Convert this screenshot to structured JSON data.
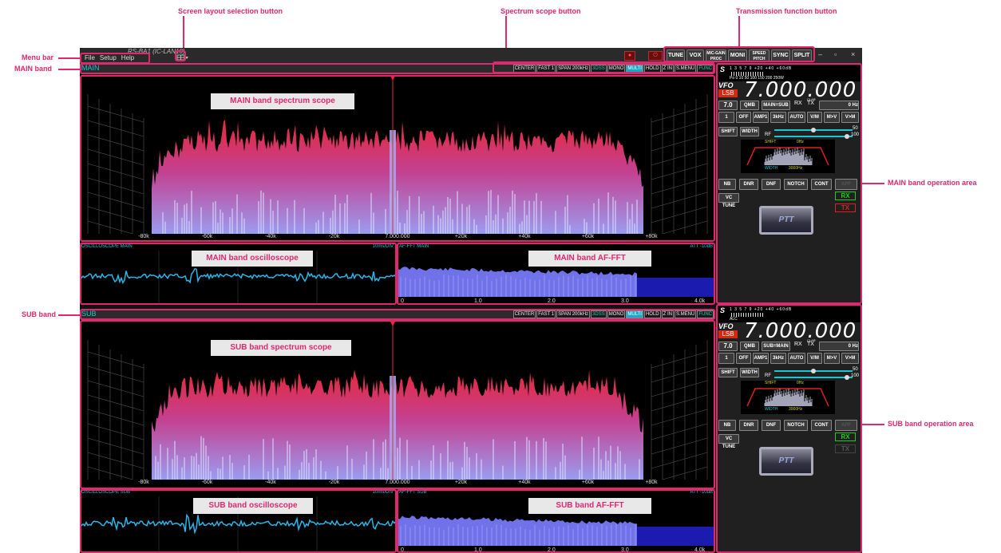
{
  "callouts": {
    "menu_bar": "Menu bar",
    "main_band": "MAIN band",
    "sub_band": "SUB band",
    "screen_layout_btn": "Screen layout selection button",
    "spectrum_scope_btn": "Spectrum scope button",
    "transmission_fn_btn": "Transmission function button",
    "main_op_area": "MAIN band operation area",
    "sub_op_area": "SUB band operation area"
  },
  "overlay_labels": {
    "main_scope": "MAIN band spectrum scope",
    "main_osc": "MAIN band oscilloscope",
    "main_fft": "MAIN band AF-FFT",
    "sub_scope": "SUB band spectrum scope",
    "sub_osc": "SUB band oscilloscope",
    "sub_fft": "SUB band AF-FFT"
  },
  "app": {
    "title": "RS-BA1 (IC-LAN10)",
    "menu": [
      "File",
      "Setup",
      "Help"
    ],
    "layout_icon": "grid-icon"
  },
  "tx_buttons": {
    "tune": "TUNE",
    "vox": "VOX",
    "mic": "MIC-GAIN PROC",
    "moni": "MONI",
    "speed": "SPEED PITCH",
    "sync": "SYNC",
    "split": "SPLIT"
  },
  "scope_buttons": [
    "CENTER",
    "FAST 1",
    "SPAN 200kHz",
    "3DSS",
    "MONO",
    "MULTI",
    "HOLD",
    "Z IN",
    "S.MENU",
    "FUNC"
  ],
  "main": {
    "band_name": "MAIN",
    "center_freq": "7.000.000",
    "axis_labels": [
      "-80k",
      "-60k",
      "-40k",
      "-20k",
      "7.000.000",
      "+20k",
      "+40k",
      "+60k",
      "+80k"
    ],
    "osc_header": "OSCILLOSCOPE MAIN",
    "osc_rate": "10ms/DIV",
    "fft_header": "AF-FFT MAIN",
    "fft_att": "ATT -10dB",
    "fft_axis": [
      "0",
      "1.0",
      "2.0",
      "3.0",
      "4.0k"
    ]
  },
  "sub": {
    "band_name": "SUB",
    "center_freq": "7.000.000",
    "axis_labels": [
      "-80k",
      "-60k",
      "-40k",
      "-20k",
      "7.000.000",
      "+20k",
      "+40k",
      "+60k",
      "+80k"
    ],
    "osc_header": "OSCILLOSCOPE SUB",
    "osc_rate": "10ms/DIV",
    "fft_header": "AF-FFT SUB",
    "fft_att": "ATT -10dB",
    "fft_axis": [
      "0",
      "1.0",
      "2.0",
      "3.0",
      "4.0k"
    ]
  },
  "main_op": {
    "meter_letter": "S",
    "meter_scale": "1  3  5  7  9  +20  +40  +60dB",
    "meter_sub": "Po 0  10  50  100  150  200  250W",
    "vfo": "VFO",
    "mode": "LSB",
    "freq": "7.000.000",
    "tuning_step": "7.0",
    "qmb": "QMB",
    "swap": "MAIN=SUB",
    "rx": "RX",
    "tx": "TX",
    "clar": "CLAR",
    "hz": "0 Hz",
    "row1": [
      "1",
      "OFF",
      "AMP1",
      "3kHz",
      "AUTO",
      "V/M",
      "M>V",
      "V>M"
    ],
    "shift": "SHIFT",
    "width": "WIDTH",
    "af_val": "50",
    "rf_label": "RF",
    "rf_val": "100",
    "filter_shift": "SHIFT",
    "filter_shift_val": "0Hz",
    "filter_width": "WIDTH",
    "filter_width_val": "3000Hz",
    "row2": [
      "NB",
      "DNR",
      "DNF",
      "NOTCH",
      "CONT",
      "APF"
    ],
    "vc_tune": "VC TUNE",
    "rx_status": "RX",
    "tx_status": "TX",
    "ptt": "PTT"
  },
  "sub_op": {
    "meter_letter": "S",
    "meter_scale": "1  3  5  7  9  +20  +40  +60dB",
    "meter_sub": "ALC",
    "vfo": "VFO",
    "mode": "LSB",
    "freq": "7.000.000",
    "tuning_step": "7.0",
    "qmb": "QMB",
    "swap": "SUB=MAIN",
    "rx": "RX",
    "tx": "TX",
    "clar": "CLAR",
    "hz": "0 Hz",
    "row1": [
      "1",
      "OFF",
      "AMP1",
      "3kHz",
      "AUTO",
      "V/M",
      "M>V",
      "V>M"
    ],
    "shift": "SHIFT",
    "width": "WIDTH",
    "af_val": "50",
    "rf_label": "RF",
    "rf_val": "100",
    "filter_shift": "SHIFT",
    "filter_shift_val": "0Hz",
    "filter_width": "WIDTH",
    "filter_width_val": "3000Hz",
    "row2": [
      "NB",
      "DNR",
      "DNF",
      "NOTCH",
      "CONT",
      "APF"
    ],
    "vc_tune": "VC TUNE",
    "rx_status": "RX",
    "tx_status": "TX",
    "ptt": "PTT"
  },
  "colors": {
    "callout": "#e0286e",
    "band_text": "#19c7d4",
    "scope_red": "#e8283a",
    "scope_blue": "#9a9cf0",
    "rx_green": "#22c922",
    "tx_red": "#e02020"
  }
}
